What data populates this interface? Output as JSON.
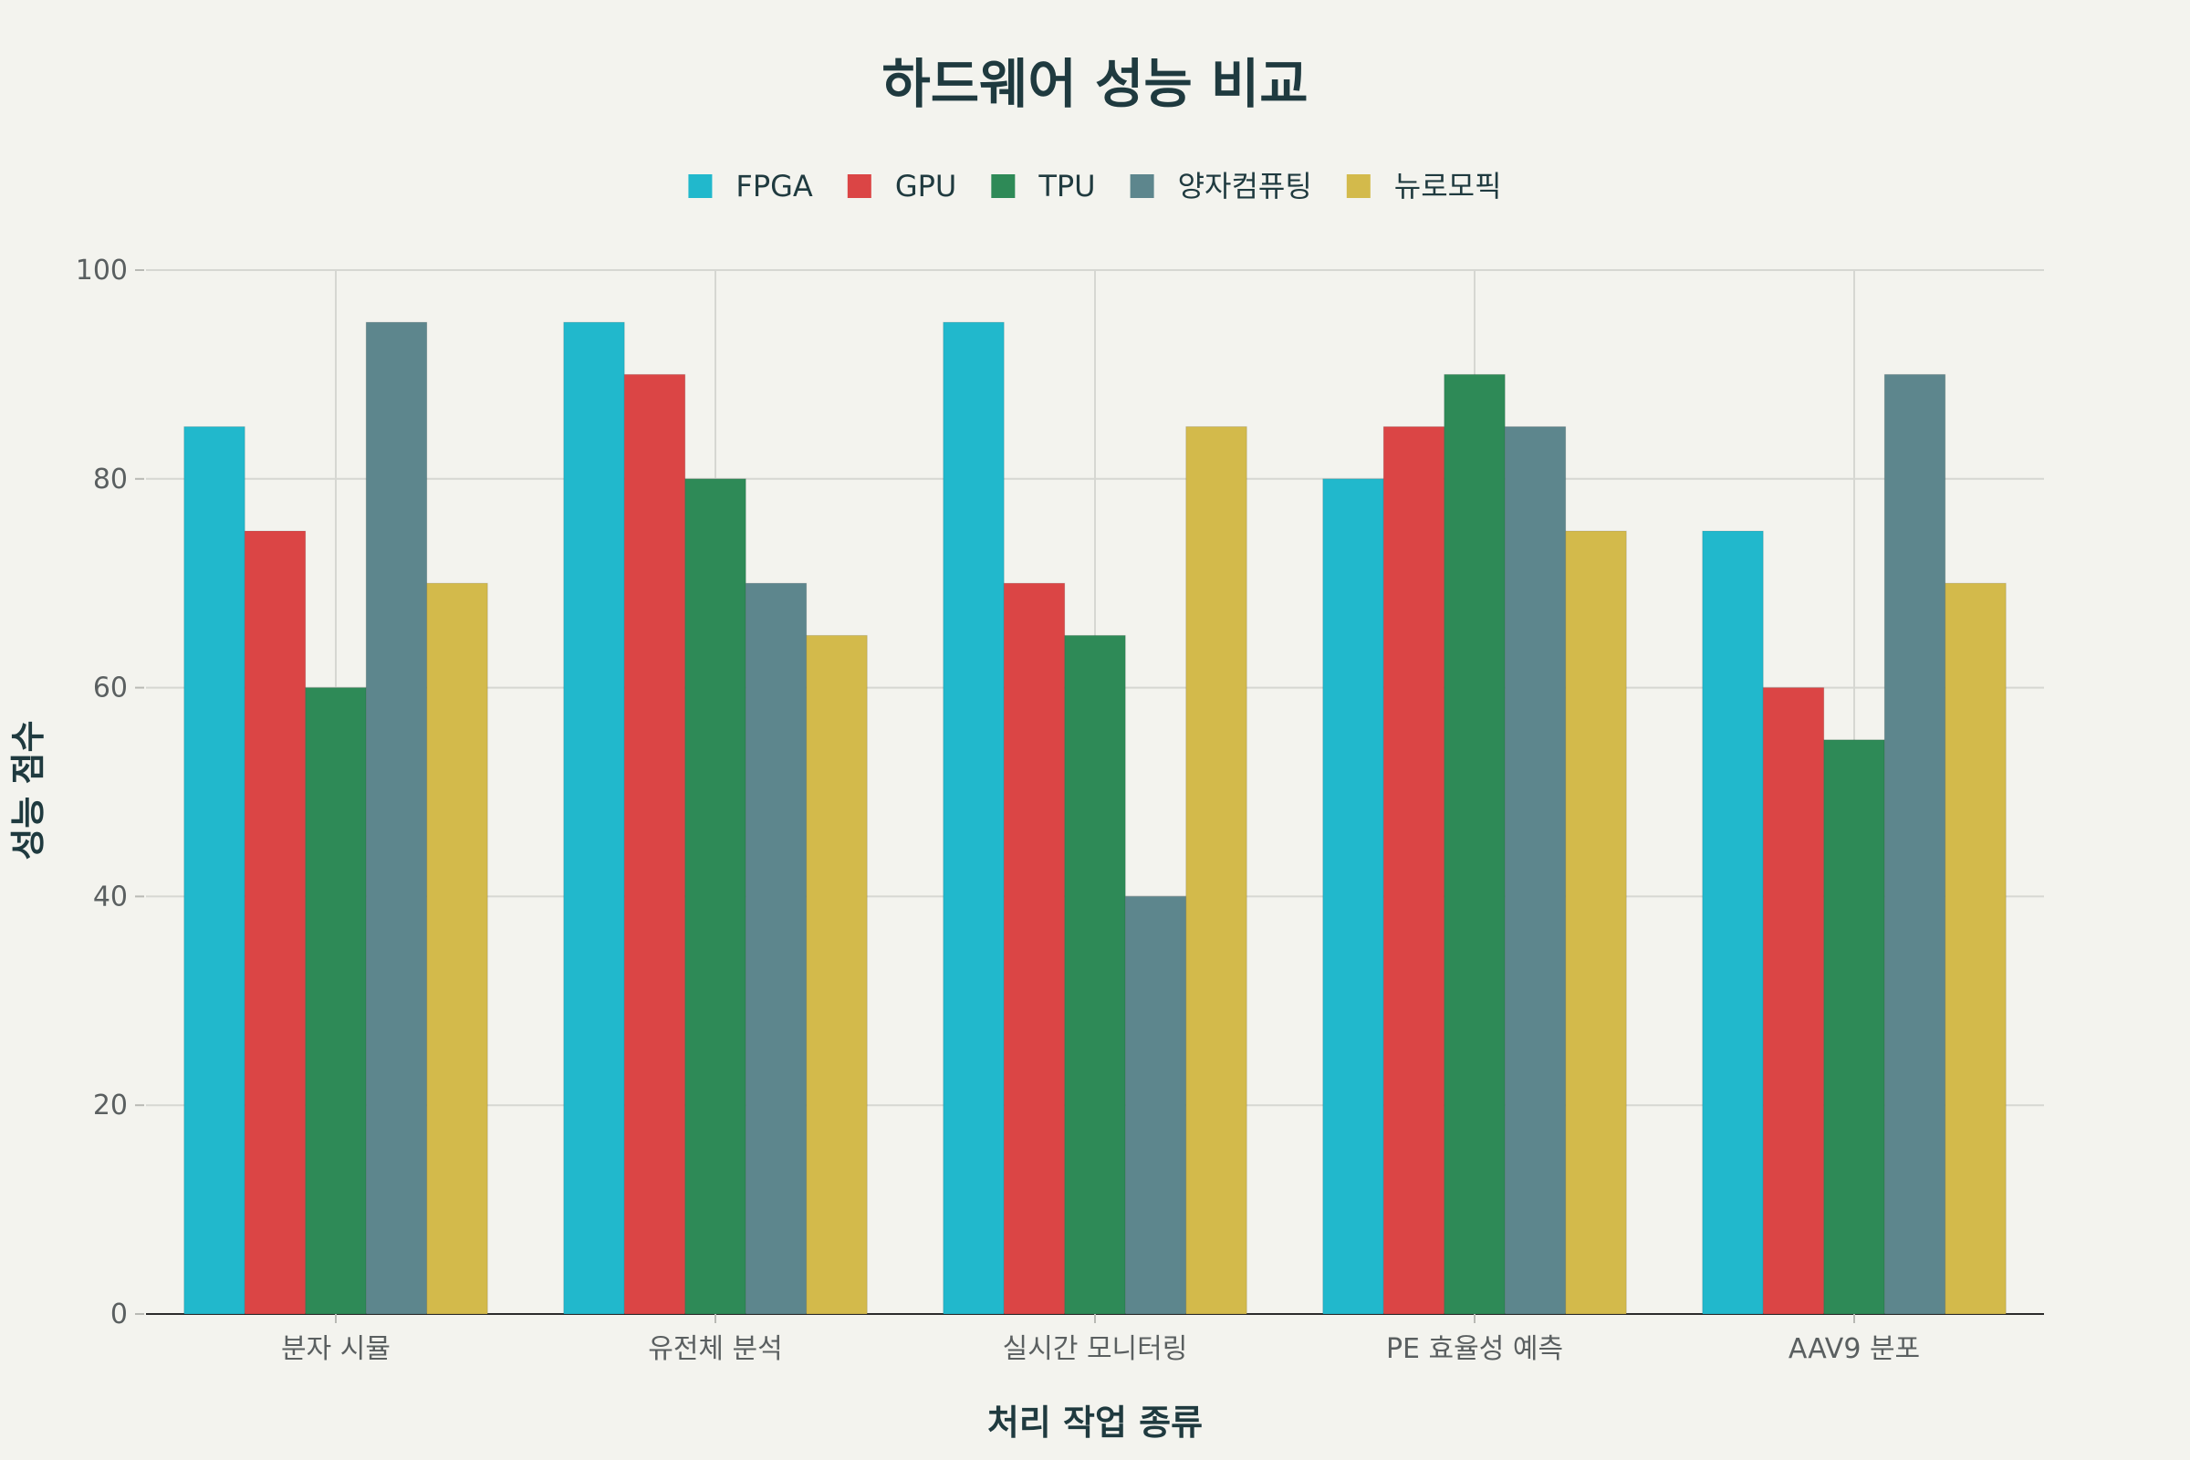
{
  "chart_data": {
    "type": "bar",
    "title": "하드웨어 성능 비교",
    "xlabel": "처리 작업 종류",
    "ylabel": "성능 점수",
    "categories": [
      "분자 시뮬",
      "유전체 분석",
      "실시간 모니터링",
      "PE 효율성 예측",
      "AAV9 분포"
    ],
    "series": [
      {
        "name": "FPGA",
        "color": "#21b8cc",
        "values": [
          85,
          95,
          95,
          80,
          75
        ]
      },
      {
        "name": "GPU",
        "color": "#db4545",
        "values": [
          75,
          90,
          70,
          85,
          60
        ]
      },
      {
        "name": "TPU",
        "color": "#2e8a57",
        "values": [
          60,
          80,
          65,
          90,
          55
        ]
      },
      {
        "name": "양자컴퓨팅",
        "color": "#5d868d",
        "values": [
          95,
          70,
          40,
          85,
          90
        ]
      },
      {
        "name": "뉴로모픽",
        "color": "#d3ba4b",
        "values": [
          70,
          65,
          85,
          75,
          70
        ]
      }
    ],
    "ylim": [
      0,
      100
    ],
    "yticks": [
      0,
      20,
      40,
      60,
      80,
      100
    ],
    "grid": true,
    "legend_position": "top-center"
  }
}
